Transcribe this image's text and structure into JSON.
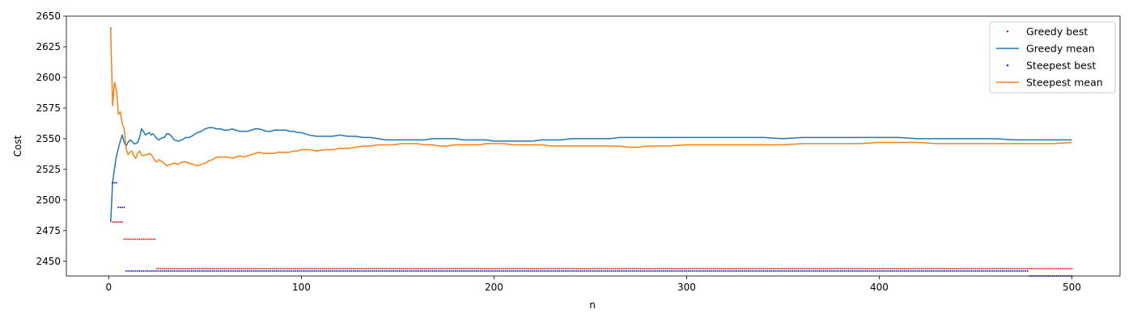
{
  "chart_data": {
    "type": "line",
    "xlabel": "n",
    "ylabel": "Cost",
    "xlim": [
      -22,
      525
    ],
    "ylim": [
      2438,
      2650
    ],
    "xticks": [
      0,
      100,
      200,
      300,
      400,
      500
    ],
    "yticks": [
      2450,
      2475,
      2500,
      2525,
      2550,
      2575,
      2600,
      2625,
      2650
    ],
    "grid": false,
    "legend_position": "top-right",
    "series": [
      {
        "name": "Greedy best",
        "style": "points",
        "color": "#ff0000",
        "segments": [
          {
            "x_from": 1,
            "x_to": 1,
            "y": 2640
          },
          {
            "x_from": 2,
            "x_to": 7,
            "y": 2482
          },
          {
            "x_from": 8,
            "x_to": 24,
            "y": 2468
          },
          {
            "x_from": 25,
            "x_to": 500,
            "y": 2444
          }
        ]
      },
      {
        "name": "Greedy mean",
        "style": "line",
        "color": "#1f77b4",
        "points": [
          [
            1,
            2482
          ],
          [
            2,
            2514
          ],
          [
            3,
            2526
          ],
          [
            4,
            2536
          ],
          [
            5,
            2542
          ],
          [
            6,
            2548
          ],
          [
            7,
            2553
          ],
          [
            8,
            2547
          ],
          [
            9,
            2544
          ],
          [
            10,
            2547
          ],
          [
            11,
            2549
          ],
          [
            12,
            2548
          ],
          [
            13,
            2546
          ],
          [
            14,
            2546
          ],
          [
            15,
            2547
          ],
          [
            16,
            2551
          ],
          [
            17,
            2558
          ],
          [
            18,
            2556
          ],
          [
            19,
            2553
          ],
          [
            20,
            2554
          ],
          [
            21,
            2555
          ],
          [
            22,
            2553
          ],
          [
            23,
            2554
          ],
          [
            24,
            2552
          ],
          [
            25,
            2550
          ],
          [
            26,
            2549
          ],
          [
            27,
            2550
          ],
          [
            28,
            2551
          ],
          [
            29,
            2551
          ],
          [
            30,
            2554
          ],
          [
            31,
            2554
          ],
          [
            32,
            2553
          ],
          [
            34,
            2549
          ],
          [
            36,
            2548
          ],
          [
            38,
            2549
          ],
          [
            40,
            2551
          ],
          [
            42,
            2551
          ],
          [
            44,
            2553
          ],
          [
            46,
            2555
          ],
          [
            48,
            2556
          ],
          [
            50,
            2558
          ],
          [
            52,
            2559
          ],
          [
            54,
            2559
          ],
          [
            56,
            2558
          ],
          [
            58,
            2558
          ],
          [
            60,
            2557
          ],
          [
            62,
            2557
          ],
          [
            64,
            2558
          ],
          [
            66,
            2557
          ],
          [
            68,
            2556
          ],
          [
            70,
            2556
          ],
          [
            72,
            2556
          ],
          [
            74,
            2557
          ],
          [
            76,
            2558
          ],
          [
            78,
            2558
          ],
          [
            80,
            2557
          ],
          [
            82,
            2556
          ],
          [
            84,
            2556
          ],
          [
            86,
            2557
          ],
          [
            88,
            2557
          ],
          [
            90,
            2557
          ],
          [
            92,
            2557
          ],
          [
            94,
            2556
          ],
          [
            96,
            2556
          ],
          [
            98,
            2555
          ],
          [
            100,
            2555
          ],
          [
            104,
            2553
          ],
          [
            108,
            2552
          ],
          [
            112,
            2552
          ],
          [
            116,
            2552
          ],
          [
            120,
            2553
          ],
          [
            124,
            2552
          ],
          [
            128,
            2552
          ],
          [
            132,
            2551
          ],
          [
            136,
            2551
          ],
          [
            140,
            2550
          ],
          [
            144,
            2549
          ],
          [
            148,
            2549
          ],
          [
            152,
            2549
          ],
          [
            156,
            2549
          ],
          [
            160,
            2549
          ],
          [
            164,
            2549
          ],
          [
            168,
            2550
          ],
          [
            172,
            2550
          ],
          [
            176,
            2550
          ],
          [
            180,
            2550
          ],
          [
            184,
            2549
          ],
          [
            188,
            2549
          ],
          [
            192,
            2549
          ],
          [
            196,
            2549
          ],
          [
            200,
            2548
          ],
          [
            205,
            2548
          ],
          [
            210,
            2548
          ],
          [
            215,
            2548
          ],
          [
            220,
            2548
          ],
          [
            225,
            2549
          ],
          [
            230,
            2549
          ],
          [
            235,
            2549
          ],
          [
            240,
            2550
          ],
          [
            245,
            2550
          ],
          [
            250,
            2550
          ],
          [
            255,
            2550
          ],
          [
            260,
            2550
          ],
          [
            265,
            2551
          ],
          [
            270,
            2551
          ],
          [
            275,
            2551
          ],
          [
            280,
            2551
          ],
          [
            285,
            2551
          ],
          [
            290,
            2551
          ],
          [
            300,
            2551
          ],
          [
            310,
            2551
          ],
          [
            320,
            2551
          ],
          [
            330,
            2551
          ],
          [
            340,
            2551
          ],
          [
            350,
            2550
          ],
          [
            360,
            2551
          ],
          [
            370,
            2551
          ],
          [
            380,
            2551
          ],
          [
            390,
            2551
          ],
          [
            400,
            2551
          ],
          [
            410,
            2551
          ],
          [
            420,
            2550
          ],
          [
            430,
            2550
          ],
          [
            440,
            2550
          ],
          [
            450,
            2550
          ],
          [
            460,
            2550
          ],
          [
            470,
            2549
          ],
          [
            480,
            2549
          ],
          [
            490,
            2549
          ],
          [
            500,
            2549
          ]
        ]
      },
      {
        "name": "Steepest best",
        "style": "points",
        "color": "#0000ff",
        "segments": [
          {
            "x_from": 1,
            "x_to": 1,
            "y": 2640
          },
          {
            "x_from": 2,
            "x_to": 4,
            "y": 2514
          },
          {
            "x_from": 5,
            "x_to": 8,
            "y": 2494
          },
          {
            "x_from": 9,
            "x_to": 477,
            "y": 2442
          },
          {
            "x_from": 478,
            "x_to": 500,
            "y": 2438
          }
        ]
      },
      {
        "name": "Steepest mean",
        "style": "line",
        "color": "#ff7f0e",
        "points": [
          [
            1,
            2640
          ],
          [
            2,
            2577
          ],
          [
            3,
            2596
          ],
          [
            4,
            2590
          ],
          [
            5,
            2570
          ],
          [
            6,
            2572
          ],
          [
            7,
            2562
          ],
          [
            8,
            2558
          ],
          [
            9,
            2542
          ],
          [
            10,
            2537
          ],
          [
            11,
            2539
          ],
          [
            12,
            2540
          ],
          [
            13,
            2536
          ],
          [
            14,
            2534
          ],
          [
            15,
            2538
          ],
          [
            16,
            2540
          ],
          [
            17,
            2537
          ],
          [
            18,
            2536
          ],
          [
            19,
            2537
          ],
          [
            20,
            2537
          ],
          [
            21,
            2538
          ],
          [
            22,
            2537
          ],
          [
            23,
            2535
          ],
          [
            24,
            2532
          ],
          [
            25,
            2531
          ],
          [
            26,
            2533
          ],
          [
            27,
            2532
          ],
          [
            28,
            2531
          ],
          [
            30,
            2528
          ],
          [
            32,
            2529
          ],
          [
            34,
            2530
          ],
          [
            36,
            2529
          ],
          [
            38,
            2531
          ],
          [
            40,
            2531
          ],
          [
            42,
            2530
          ],
          [
            44,
            2529
          ],
          [
            46,
            2528
          ],
          [
            48,
            2529
          ],
          [
            50,
            2530
          ],
          [
            52,
            2532
          ],
          [
            54,
            2533
          ],
          [
            56,
            2535
          ],
          [
            58,
            2535
          ],
          [
            60,
            2535
          ],
          [
            62,
            2535
          ],
          [
            64,
            2534
          ],
          [
            66,
            2535
          ],
          [
            68,
            2536
          ],
          [
            70,
            2535
          ],
          [
            72,
            2536
          ],
          [
            74,
            2537
          ],
          [
            76,
            2538
          ],
          [
            78,
            2539
          ],
          [
            80,
            2538
          ],
          [
            82,
            2538
          ],
          [
            84,
            2538
          ],
          [
            86,
            2538
          ],
          [
            88,
            2539
          ],
          [
            90,
            2539
          ],
          [
            92,
            2539
          ],
          [
            94,
            2539
          ],
          [
            96,
            2540
          ],
          [
            98,
            2540
          ],
          [
            100,
            2541
          ],
          [
            104,
            2541
          ],
          [
            108,
            2540
          ],
          [
            112,
            2541
          ],
          [
            116,
            2541
          ],
          [
            120,
            2542
          ],
          [
            124,
            2542
          ],
          [
            128,
            2543
          ],
          [
            132,
            2544
          ],
          [
            136,
            2544
          ],
          [
            140,
            2545
          ],
          [
            144,
            2545
          ],
          [
            148,
            2545
          ],
          [
            152,
            2546
          ],
          [
            156,
            2546
          ],
          [
            160,
            2546
          ],
          [
            164,
            2545
          ],
          [
            168,
            2545
          ],
          [
            172,
            2544
          ],
          [
            176,
            2544
          ],
          [
            180,
            2545
          ],
          [
            184,
            2545
          ],
          [
            188,
            2545
          ],
          [
            192,
            2545
          ],
          [
            196,
            2546
          ],
          [
            200,
            2546
          ],
          [
            205,
            2546
          ],
          [
            210,
            2545
          ],
          [
            215,
            2545
          ],
          [
            220,
            2545
          ],
          [
            225,
            2545
          ],
          [
            230,
            2544
          ],
          [
            235,
            2544
          ],
          [
            240,
            2544
          ],
          [
            245,
            2544
          ],
          [
            250,
            2544
          ],
          [
            255,
            2544
          ],
          [
            260,
            2544
          ],
          [
            265,
            2544
          ],
          [
            270,
            2543
          ],
          [
            275,
            2543
          ],
          [
            280,
            2544
          ],
          [
            285,
            2544
          ],
          [
            290,
            2544
          ],
          [
            300,
            2545
          ],
          [
            310,
            2545
          ],
          [
            320,
            2545
          ],
          [
            330,
            2545
          ],
          [
            340,
            2545
          ],
          [
            350,
            2545
          ],
          [
            360,
            2546
          ],
          [
            370,
            2546
          ],
          [
            380,
            2546
          ],
          [
            390,
            2546
          ],
          [
            400,
            2547
          ],
          [
            410,
            2547
          ],
          [
            420,
            2547
          ],
          [
            430,
            2546
          ],
          [
            440,
            2546
          ],
          [
            450,
            2546
          ],
          [
            460,
            2546
          ],
          [
            470,
            2546
          ],
          [
            480,
            2546
          ],
          [
            490,
            2546
          ],
          [
            500,
            2547
          ]
        ]
      }
    ]
  }
}
